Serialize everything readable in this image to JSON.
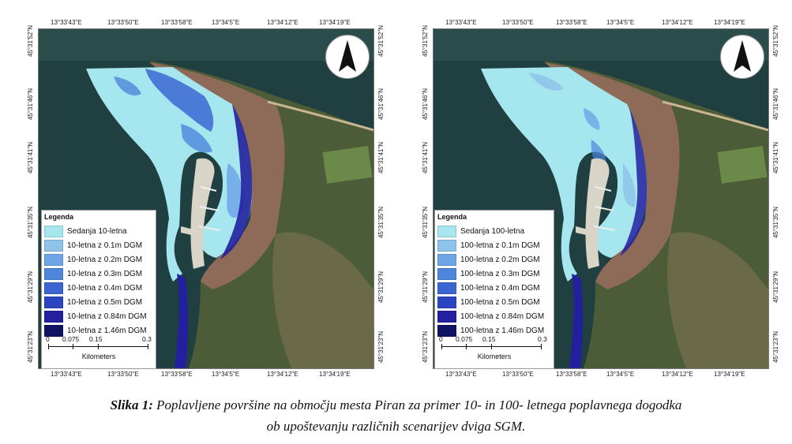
{
  "maps": [
    {
      "id": "left",
      "top_coords": [
        "13°33'43\"E",
        "13°33'50\"E",
        "13°33'58\"E",
        "13°34'5\"E",
        "13°34'12\"E",
        "13°34'19\"E"
      ],
      "bottom_coords": [
        "13°33'43\"E",
        "13°33'50\"E",
        "13°33'58\"E",
        "13°34'5\"E",
        "13°34'12\"E",
        "13°34'19\"E"
      ],
      "left_coords": [
        "45°31'52\"N",
        "45°31'46\"N",
        "45°31'41\"N",
        "45°31'35\"N",
        "45°31'29\"N",
        "45°31'23\"N"
      ],
      "right_coords": [
        "45°31'52\"N",
        "45°31'46\"N",
        "45°31'41\"N",
        "45°31'35\"N",
        "45°31'29\"N",
        "45°31'23\"N"
      ],
      "legend": {
        "title": "Legenda",
        "items": [
          {
            "label": "Sedanja 10-letna",
            "color": "#a6e6ee"
          },
          {
            "label": "10-letna z 0.1m DGM",
            "color": "#8ec3ea"
          },
          {
            "label": "10-letna z 0.2m DGM",
            "color": "#6ea5e6"
          },
          {
            "label": "10-letna z 0.3m DGM",
            "color": "#4e86dc"
          },
          {
            "label": "10-letna z 0.4m DGM",
            "color": "#3b66d2"
          },
          {
            "label": "10-letna z 0.5m DGM",
            "color": "#2c45c2"
          },
          {
            "label": "10-letna z 0.84m DGM",
            "color": "#22209f"
          },
          {
            "label": "10-letna z 1.46m DGM",
            "color": "#101460"
          }
        ],
        "scale_labels": [
          "0",
          "0.075",
          "0.15",
          "0.3"
        ],
        "scale_unit": "Kilometers"
      }
    },
    {
      "id": "right",
      "top_coords": [
        "13°33'43\"E",
        "13°33'50\"E",
        "13°33'58\"E",
        "13°34'5\"E",
        "13°34'12\"E",
        "13°34'19\"E"
      ],
      "bottom_coords": [
        "13°33'43\"E",
        "13°33'50\"E",
        "13°33'58\"E",
        "13°34'5\"E",
        "13°34'12\"E",
        "13°34'19\"E"
      ],
      "left_coords": [
        "45°31'52\"N",
        "45°31'46\"N",
        "45°31'41\"N",
        "45°31'35\"N",
        "45°31'29\"N",
        "45°31'23\"N"
      ],
      "right_coords": [
        "45°31'52\"N",
        "45°31'46\"N",
        "45°31'41\"N",
        "45°31'35\"N",
        "45°31'29\"N",
        "45°31'23\"N"
      ],
      "legend": {
        "title": "Legenda",
        "items": [
          {
            "label": "Sedanja 100-letna",
            "color": "#a6e6ee"
          },
          {
            "label": "100-letna z 0.1m DGM",
            "color": "#8ec3ea"
          },
          {
            "label": "100-letna z 0.2m DGM",
            "color": "#6ea5e6"
          },
          {
            "label": "100-letna z 0.3m DGM",
            "color": "#4e86dc"
          },
          {
            "label": "100-letna z 0.4m DGM",
            "color": "#3b66d2"
          },
          {
            "label": "100-letna z 0.5m DGM",
            "color": "#2c45c2"
          },
          {
            "label": "100-letna z 0.84m DGM",
            "color": "#22209f"
          },
          {
            "label": "100-letna z 1.46m DGM",
            "color": "#101460"
          }
        ],
        "scale_labels": [
          "0",
          "0.075",
          "0.15",
          "0.3"
        ],
        "scale_unit": "Kilometers"
      }
    }
  ],
  "caption": {
    "label": "Slika 1:",
    "line1": "Poplavljene površine na območju mesta Piran za primer 10- in 100- letnega poplavnega dogodka",
    "line2": "ob upoštevanju različnih scenarijev dviga SGM."
  },
  "colors": {
    "sea": "#1a3a3c",
    "land": "#4a5a36",
    "town": "#8a6a5a",
    "flood_light": "#a6e6ee"
  }
}
